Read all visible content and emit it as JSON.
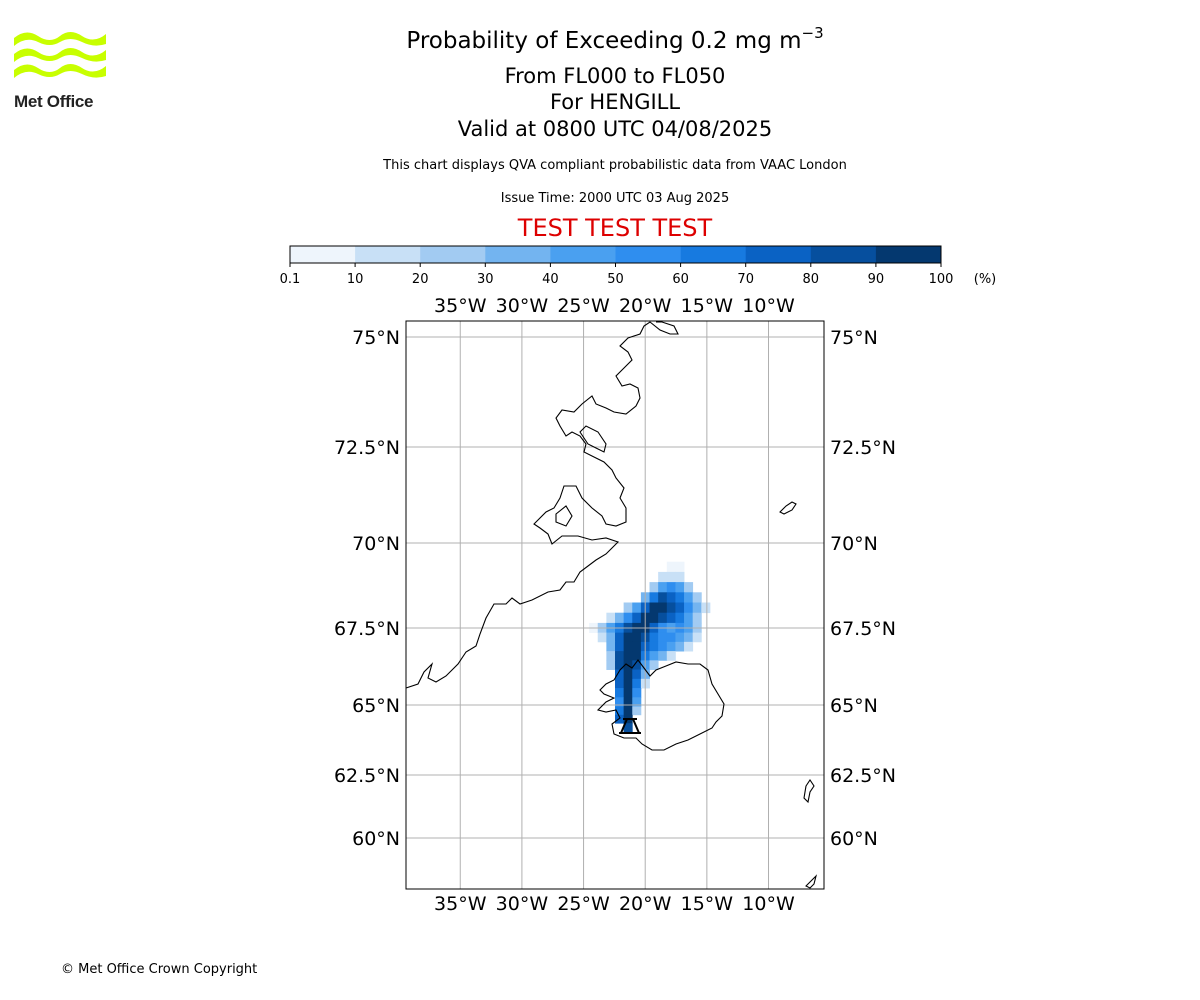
{
  "header": {
    "title_main": "Probability of Exceeding 0.2 mg m",
    "title_sup": "−3",
    "level_range": "From FL000 to FL050",
    "location": "For HENGILL",
    "valid_time": "Valid at 0800 UTC 04/08/2025",
    "description": "This chart displays QVA compliant probabilistic data from VAAC London",
    "issue_time": "Issue Time: 2000 UTC 03 Aug 2025",
    "test_banner": "TEST TEST TEST",
    "test_color": "#dd0000"
  },
  "logo": {
    "text": "Met Office",
    "icon": "met-office-waves-logo",
    "color": "#c8ff00"
  },
  "footer": {
    "copyright": "© Met Office Crown Copyright"
  },
  "chart_data": {
    "type": "heatmap",
    "colorbar": {
      "ticks": [
        "0.1",
        "10",
        "20",
        "30",
        "40",
        "50",
        "60",
        "70",
        "80",
        "90",
        "100"
      ],
      "unit": "(%)",
      "colors": [
        "#eef5fc",
        "#c8e0f6",
        "#a2cbf2",
        "#73b4f0",
        "#4aa0f0",
        "#2f8eef",
        "#177ae0",
        "#0a62c4",
        "#064f9e",
        "#04386f"
      ]
    },
    "lon_ticks": [
      "35°W",
      "30°W",
      "25°W",
      "20°W",
      "15°W",
      "10°W"
    ],
    "lat_ticks": [
      "75°N",
      "72.5°N",
      "70°N",
      "67.5°N",
      "65°N",
      "62.5°N",
      "60°N"
    ],
    "lon_values": [
      -35,
      -30,
      -25,
      -20,
      -15,
      -10
    ],
    "lat_values": [
      75,
      72.5,
      70,
      67.5,
      65,
      62.5,
      60
    ],
    "lon_range": [
      -39.4,
      -5.5
    ],
    "lat_range": [
      58.5,
      75.5
    ],
    "plume": [
      {
        "lon": -17.9,
        "lat": 69.3,
        "p": 8
      },
      {
        "lon": -17.2,
        "lat": 69.3,
        "p": 8
      },
      {
        "lon": -18.6,
        "lat": 69.0,
        "p": 12
      },
      {
        "lon": -17.9,
        "lat": 69.0,
        "p": 18
      },
      {
        "lon": -17.2,
        "lat": 69.0,
        "p": 15
      },
      {
        "lon": -19.3,
        "lat": 68.7,
        "p": 25
      },
      {
        "lon": -18.6,
        "lat": 68.7,
        "p": 45
      },
      {
        "lon": -17.9,
        "lat": 68.7,
        "p": 55
      },
      {
        "lon": -17.2,
        "lat": 68.7,
        "p": 45
      },
      {
        "lon": -16.5,
        "lat": 68.7,
        "p": 25
      },
      {
        "lon": -20.0,
        "lat": 68.4,
        "p": 35
      },
      {
        "lon": -19.3,
        "lat": 68.4,
        "p": 60
      },
      {
        "lon": -18.6,
        "lat": 68.4,
        "p": 85
      },
      {
        "lon": -17.9,
        "lat": 68.4,
        "p": 75
      },
      {
        "lon": -17.2,
        "lat": 68.4,
        "p": 65
      },
      {
        "lon": -16.5,
        "lat": 68.4,
        "p": 45
      },
      {
        "lon": -15.8,
        "lat": 68.4,
        "p": 25
      },
      {
        "lon": -21.4,
        "lat": 68.1,
        "p": 25
      },
      {
        "lon": -20.7,
        "lat": 68.1,
        "p": 45
      },
      {
        "lon": -20.0,
        "lat": 68.1,
        "p": 70
      },
      {
        "lon": -19.3,
        "lat": 68.1,
        "p": 92
      },
      {
        "lon": -18.6,
        "lat": 68.1,
        "p": 95
      },
      {
        "lon": -17.9,
        "lat": 68.1,
        "p": 85
      },
      {
        "lon": -17.2,
        "lat": 68.1,
        "p": 70
      },
      {
        "lon": -16.5,
        "lat": 68.1,
        "p": 50
      },
      {
        "lon": -15.8,
        "lat": 68.1,
        "p": 30
      },
      {
        "lon": -15.1,
        "lat": 68.1,
        "p": 12
      },
      {
        "lon": -22.8,
        "lat": 67.8,
        "p": 12
      },
      {
        "lon": -22.1,
        "lat": 67.8,
        "p": 30
      },
      {
        "lon": -21.4,
        "lat": 67.8,
        "p": 55
      },
      {
        "lon": -20.7,
        "lat": 67.8,
        "p": 75
      },
      {
        "lon": -20.0,
        "lat": 67.8,
        "p": 90
      },
      {
        "lon": -19.3,
        "lat": 67.8,
        "p": 95
      },
      {
        "lon": -18.6,
        "lat": 67.8,
        "p": 85
      },
      {
        "lon": -17.9,
        "lat": 67.8,
        "p": 70
      },
      {
        "lon": -17.2,
        "lat": 67.8,
        "p": 60
      },
      {
        "lon": -16.5,
        "lat": 67.8,
        "p": 45
      },
      {
        "lon": -15.8,
        "lat": 67.8,
        "p": 25
      },
      {
        "lon": -24.2,
        "lat": 67.5,
        "p": 8
      },
      {
        "lon": -23.5,
        "lat": 67.5,
        "p": 20
      },
      {
        "lon": -22.8,
        "lat": 67.5,
        "p": 40
      },
      {
        "lon": -22.1,
        "lat": 67.5,
        "p": 65
      },
      {
        "lon": -21.4,
        "lat": 67.5,
        "p": 88
      },
      {
        "lon": -20.7,
        "lat": 67.5,
        "p": 95
      },
      {
        "lon": -20.0,
        "lat": 67.5,
        "p": 90
      },
      {
        "lon": -19.3,
        "lat": 67.5,
        "p": 70
      },
      {
        "lon": -18.6,
        "lat": 67.5,
        "p": 55
      },
      {
        "lon": -17.9,
        "lat": 67.5,
        "p": 45
      },
      {
        "lon": -17.2,
        "lat": 67.5,
        "p": 55
      },
      {
        "lon": -16.5,
        "lat": 67.5,
        "p": 40
      },
      {
        "lon": -15.8,
        "lat": 67.5,
        "p": 20
      },
      {
        "lon": -23.5,
        "lat": 67.2,
        "p": 15
      },
      {
        "lon": -22.8,
        "lat": 67.2,
        "p": 35
      },
      {
        "lon": -22.1,
        "lat": 67.2,
        "p": 70
      },
      {
        "lon": -21.4,
        "lat": 67.2,
        "p": 95
      },
      {
        "lon": -20.7,
        "lat": 67.2,
        "p": 97
      },
      {
        "lon": -20.0,
        "lat": 67.2,
        "p": 80
      },
      {
        "lon": -19.3,
        "lat": 67.2,
        "p": 65
      },
      {
        "lon": -18.6,
        "lat": 67.2,
        "p": 55
      },
      {
        "lon": -17.9,
        "lat": 67.2,
        "p": 50
      },
      {
        "lon": -17.2,
        "lat": 67.2,
        "p": 45
      },
      {
        "lon": -16.5,
        "lat": 67.2,
        "p": 35
      },
      {
        "lon": -15.8,
        "lat": 67.2,
        "p": 15
      },
      {
        "lon": -22.8,
        "lat": 66.9,
        "p": 30
      },
      {
        "lon": -22.1,
        "lat": 66.9,
        "p": 75
      },
      {
        "lon": -21.4,
        "lat": 66.9,
        "p": 97
      },
      {
        "lon": -20.7,
        "lat": 66.9,
        "p": 95
      },
      {
        "lon": -20.0,
        "lat": 66.9,
        "p": 75
      },
      {
        "lon": -19.3,
        "lat": 66.9,
        "p": 60
      },
      {
        "lon": -18.6,
        "lat": 66.9,
        "p": 50
      },
      {
        "lon": -17.9,
        "lat": 66.9,
        "p": 40
      },
      {
        "lon": -17.2,
        "lat": 66.9,
        "p": 30
      },
      {
        "lon": -16.5,
        "lat": 66.9,
        "p": 15
      },
      {
        "lon": -22.8,
        "lat": 66.6,
        "p": 25
      },
      {
        "lon": -22.1,
        "lat": 66.6,
        "p": 80
      },
      {
        "lon": -21.4,
        "lat": 66.6,
        "p": 98
      },
      {
        "lon": -20.7,
        "lat": 66.6,
        "p": 92
      },
      {
        "lon": -20.0,
        "lat": 66.6,
        "p": 65
      },
      {
        "lon": -19.3,
        "lat": 66.6,
        "p": 45
      },
      {
        "lon": -18.6,
        "lat": 66.6,
        "p": 30
      },
      {
        "lon": -17.9,
        "lat": 66.6,
        "p": 12
      },
      {
        "lon": -22.8,
        "lat": 66.3,
        "p": 20
      },
      {
        "lon": -22.1,
        "lat": 66.3,
        "p": 80
      },
      {
        "lon": -21.4,
        "lat": 66.3,
        "p": 98
      },
      {
        "lon": -20.7,
        "lat": 66.3,
        "p": 85
      },
      {
        "lon": -20.0,
        "lat": 66.3,
        "p": 45
      },
      {
        "lon": -19.3,
        "lat": 66.3,
        "p": 25
      },
      {
        "lon": -22.1,
        "lat": 66.0,
        "p": 75
      },
      {
        "lon": -21.4,
        "lat": 66.0,
        "p": 97
      },
      {
        "lon": -20.7,
        "lat": 66.0,
        "p": 75
      },
      {
        "lon": -20.0,
        "lat": 66.0,
        "p": 30
      },
      {
        "lon": -22.1,
        "lat": 65.7,
        "p": 70
      },
      {
        "lon": -21.4,
        "lat": 65.7,
        "p": 97
      },
      {
        "lon": -20.7,
        "lat": 65.7,
        "p": 65
      },
      {
        "lon": -20.0,
        "lat": 65.7,
        "p": 15
      },
      {
        "lon": -22.1,
        "lat": 65.4,
        "p": 60
      },
      {
        "lon": -21.4,
        "lat": 65.4,
        "p": 96
      },
      {
        "lon": -20.7,
        "lat": 65.4,
        "p": 55
      },
      {
        "lon": -22.1,
        "lat": 65.1,
        "p": 55
      },
      {
        "lon": -21.4,
        "lat": 65.1,
        "p": 95
      },
      {
        "lon": -20.7,
        "lat": 65.1,
        "p": 40
      },
      {
        "lon": -22.1,
        "lat": 64.8,
        "p": 65
      },
      {
        "lon": -21.4,
        "lat": 64.8,
        "p": 95
      },
      {
        "lon": -20.7,
        "lat": 64.8,
        "p": 25
      },
      {
        "lon": -22.1,
        "lat": 64.5,
        "p": 70
      },
      {
        "lon": -21.4,
        "lat": 64.5,
        "p": 92
      },
      {
        "lon": -21.4,
        "lat": 64.2,
        "p": 80
      }
    ]
  }
}
